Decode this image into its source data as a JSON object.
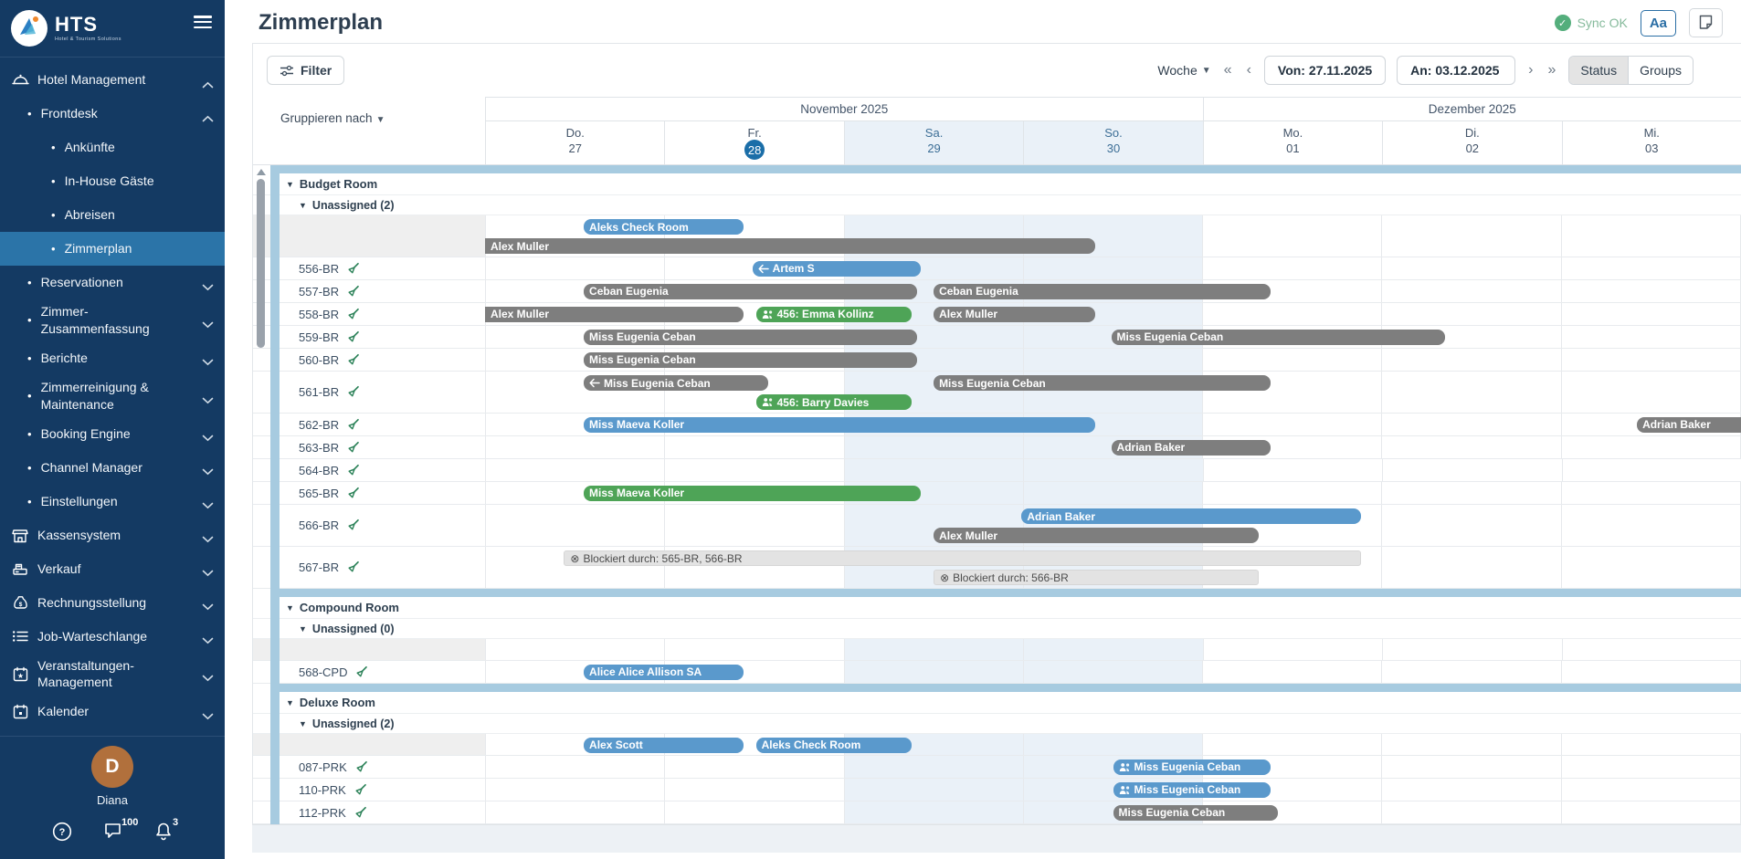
{
  "sidebar": {
    "brand": "HTS",
    "tagline": "Hotel & Tourism Solutions",
    "items": [
      {
        "label": "Hotel Management",
        "icon": "cloche-icon",
        "level": 0,
        "chevron": "up"
      },
      {
        "label": "Frontdesk",
        "level": 1,
        "chevron": "up"
      },
      {
        "label": "Ankünfte",
        "level": 2
      },
      {
        "label": "In-House Gäste",
        "level": 2
      },
      {
        "label": "Abreisen",
        "level": 2
      },
      {
        "label": "Zimmerplan",
        "level": 2,
        "selected": true
      },
      {
        "label": "Reservationen",
        "level": 1,
        "chevron": "down"
      },
      {
        "label": "Zimmer-Zusammenfassung",
        "level": 1,
        "chevron": "down"
      },
      {
        "label": "Berichte",
        "level": 1,
        "chevron": "down"
      },
      {
        "label": "Zimmerreinigung & Maintenance",
        "level": 1,
        "chevron": "down"
      },
      {
        "label": "Booking Engine",
        "level": 1,
        "chevron": "down"
      },
      {
        "label": "Channel Manager",
        "level": 1,
        "chevron": "down"
      },
      {
        "label": "Einstellungen",
        "level": 1,
        "chevron": "down"
      },
      {
        "label": "Kassensystem",
        "icon": "shop-icon",
        "level": 0,
        "chevron": "down"
      },
      {
        "label": "Verkauf",
        "icon": "register-icon",
        "level": 0,
        "chevron": "down"
      },
      {
        "label": "Rechnungsstellung",
        "icon": "moneybag-icon",
        "level": 0,
        "chevron": "down"
      },
      {
        "label": "Job-Warteschlange",
        "icon": "queue-icon",
        "level": 0,
        "chevron": "down"
      },
      {
        "label": "Veranstaltungen-Management",
        "icon": "event-calendar-icon",
        "level": 0,
        "chevron": "down"
      },
      {
        "label": "Kalender",
        "icon": "calendar-icon",
        "level": 0,
        "chevron": "down"
      }
    ],
    "user": {
      "initial": "D",
      "name": "Diana"
    },
    "footer": {
      "messages_count": "100",
      "notifications_count": "3"
    }
  },
  "header": {
    "title": "Zimmerplan",
    "sync_label": "Sync OK",
    "font_button_label": "Aa"
  },
  "toolbar": {
    "filter_label": "Filter",
    "range_mode": "Woche",
    "from_value": "Von: 27.11.2025",
    "to_value": "An: 03.12.2025",
    "pager": {
      "first": "«",
      "prev": "‹",
      "next": "›",
      "last": "»"
    },
    "view_toggle": [
      {
        "label": "Status",
        "active": true
      },
      {
        "label": "Groups",
        "active": false
      }
    ]
  },
  "grid": {
    "group_by_label": "Gruppieren nach",
    "months": [
      {
        "label": "November 2025",
        "span": 4
      },
      {
        "label": "Dezember 2025",
        "span": 3
      }
    ],
    "days": [
      {
        "name": "Do.",
        "num": "27"
      },
      {
        "name": "Fr.",
        "num": "28",
        "today": true
      },
      {
        "name": "Sa.",
        "num": "29",
        "weekend": true
      },
      {
        "name": "So.",
        "num": "30",
        "weekend": true
      },
      {
        "name": "Mo.",
        "num": "01"
      },
      {
        "name": "Di.",
        "num": "02"
      },
      {
        "name": "Mi.",
        "num": "03"
      }
    ],
    "groups": [
      {
        "name": "Budget Room",
        "subgroup": "Unassigned (2)",
        "rows": [
          {
            "room": "",
            "unassigned": true,
            "lines": 2,
            "bars": [
              {
                "line": 0,
                "color": "blue",
                "start": 0.55,
                "end": 1.44,
                "label": "Aleks Check Room"
              },
              {
                "line": 1,
                "color": "gray",
                "start": 0,
                "end": 3.4,
                "label": "Alex Muller",
                "flat_left": true
              }
            ]
          },
          {
            "room": "556-BR",
            "clean": true,
            "lines": 1,
            "bars": [
              {
                "line": 0,
                "color": "blue",
                "start": 1.49,
                "end": 2.43,
                "label": "Artem S",
                "icon": "departure-arrow-icon"
              }
            ]
          },
          {
            "room": "557-BR",
            "clean": true,
            "lines": 1,
            "bars": [
              {
                "line": 0,
                "color": "gray",
                "start": 0.55,
                "end": 2.41,
                "label": "Ceban Eugenia"
              },
              {
                "line": 0,
                "color": "gray",
                "start": 2.5,
                "end": 4.38,
                "label": "Ceban Eugenia"
              }
            ]
          },
          {
            "room": "558-BR",
            "clean": true,
            "lines": 1,
            "bars": [
              {
                "line": 0,
                "color": "gray",
                "start": 0,
                "end": 1.44,
                "label": "Alex Muller",
                "flat_left": true
              },
              {
                "line": 0,
                "color": "green",
                "start": 1.51,
                "end": 2.38,
                "label": "456: Emma Kollinz",
                "icon": "guests-icon"
              },
              {
                "line": 0,
                "color": "gray",
                "start": 2.5,
                "end": 3.4,
                "label": "Alex Muller"
              }
            ]
          },
          {
            "room": "559-BR",
            "clean": true,
            "lines": 1,
            "bars": [
              {
                "line": 0,
                "color": "gray",
                "start": 0.55,
                "end": 2.41,
                "label": "Miss Eugenia Ceban"
              },
              {
                "line": 0,
                "color": "gray",
                "start": 3.49,
                "end": 5.35,
                "label": "Miss Eugenia Ceban"
              }
            ]
          },
          {
            "room": "560-BR",
            "clean": true,
            "lines": 1,
            "bars": [
              {
                "line": 0,
                "color": "gray",
                "start": 0.55,
                "end": 2.41,
                "label": "Miss Eugenia Ceban"
              }
            ]
          },
          {
            "room": "561-BR",
            "clean": true,
            "lines": 2,
            "bars": [
              {
                "line": 0,
                "color": "gray",
                "start": 0.55,
                "end": 1.58,
                "label": "Miss Eugenia Ceban",
                "icon": "departure-arrow-icon"
              },
              {
                "line": 0,
                "color": "gray",
                "start": 2.5,
                "end": 4.38,
                "label": "Miss Eugenia Ceban"
              },
              {
                "line": 1,
                "color": "green",
                "start": 1.51,
                "end": 2.38,
                "label": "456: Barry Davies",
                "icon": "guests-icon"
              }
            ]
          },
          {
            "room": "562-BR",
            "clean": true,
            "lines": 1,
            "bars": [
              {
                "line": 0,
                "color": "blue",
                "start": 0.55,
                "end": 3.4,
                "label": "Miss Maeva Koller"
              },
              {
                "line": 0,
                "color": "gray",
                "start": 6.42,
                "end": 7.05,
                "label": "Adrian Baker",
                "flat_right": true
              }
            ]
          },
          {
            "room": "563-BR",
            "clean": true,
            "lines": 1,
            "bars": [
              {
                "line": 0,
                "color": "gray",
                "start": 3.49,
                "end": 4.38,
                "label": "Adrian Baker"
              }
            ]
          },
          {
            "room": "564-BR",
            "clean": true,
            "lines": 1,
            "bars": []
          },
          {
            "room": "565-BR",
            "clean": true,
            "lines": 1,
            "bars": [
              {
                "line": 0,
                "color": "green",
                "start": 0.55,
                "end": 2.43,
                "label": "Miss Maeva Koller"
              }
            ]
          },
          {
            "room": "566-BR",
            "clean": true,
            "lines": 2,
            "bars": [
              {
                "line": 0,
                "color": "blue",
                "start": 2.99,
                "end": 4.88,
                "label": "Adrian Baker"
              },
              {
                "line": 1,
                "color": "gray",
                "start": 2.5,
                "end": 4.31,
                "label": "Alex Muller"
              }
            ]
          },
          {
            "room": "567-BR",
            "clean": true,
            "lines": 2,
            "bars": [
              {
                "line": 0,
                "color": "blocked",
                "start": 0.44,
                "end": 4.88,
                "label": "Blockiert durch: 565-BR, 566-BR",
                "icon": "blocked-icon"
              },
              {
                "line": 1,
                "color": "blocked",
                "start": 2.5,
                "end": 4.31,
                "label": "Blockiert durch: 566-BR",
                "icon": "blocked-icon"
              }
            ]
          }
        ]
      },
      {
        "name": "Compound Room",
        "subgroup": "Unassigned (0)",
        "rows": [
          {
            "room": "",
            "unassigned": true,
            "lines": 1,
            "bars": []
          },
          {
            "room": "568-CPD",
            "clean": true,
            "lines": 1,
            "bars": [
              {
                "line": 0,
                "color": "blue",
                "start": 0.55,
                "end": 1.44,
                "label": "Alice Alice Allison SA"
              }
            ]
          }
        ]
      },
      {
        "name": "Deluxe Room",
        "subgroup": "Unassigned (2)",
        "rows": [
          {
            "room": "",
            "unassigned": true,
            "lines": 1,
            "bars": [
              {
                "line": 0,
                "color": "blue",
                "start": 0.55,
                "end": 1.44,
                "label": "Alex Scott"
              },
              {
                "line": 0,
                "color": "blue",
                "start": 1.51,
                "end": 2.38,
                "label": "Aleks Check Room"
              }
            ]
          },
          {
            "room": "087-PRK",
            "clean": true,
            "lines": 1,
            "bars": [
              {
                "line": 0,
                "color": "blue",
                "start": 3.5,
                "end": 4.38,
                "label": "Miss Eugenia Ceban",
                "icon": "guests-icon"
              }
            ]
          },
          {
            "room": "110-PRK",
            "clean": true,
            "lines": 1,
            "bars": [
              {
                "line": 0,
                "color": "blue",
                "start": 3.5,
                "end": 4.38,
                "label": "Miss Eugenia Ceban",
                "icon": "guests-icon"
              }
            ]
          },
          {
            "room": "112-PRK",
            "clean": true,
            "lines": 1,
            "bars": [
              {
                "line": 0,
                "color": "gray",
                "start": 3.5,
                "end": 4.42,
                "label": "Miss Eugenia Ceban"
              }
            ]
          }
        ]
      }
    ]
  },
  "colors": {
    "sidebar_bg": "#143a63",
    "sidebar_selected": "#2b74a8",
    "bar_blue": "#5a99cc",
    "bar_gray": "#7e7e7e",
    "bar_green": "#4ea457",
    "bar_blocked": "#e3e3e3",
    "group_separator": "#a7cbe0",
    "weekend_tint": "#eaf1f8",
    "today_circle": "#1b6ea8",
    "sync_green": "#54ae7c",
    "avatar_orange": "#b1703c"
  }
}
